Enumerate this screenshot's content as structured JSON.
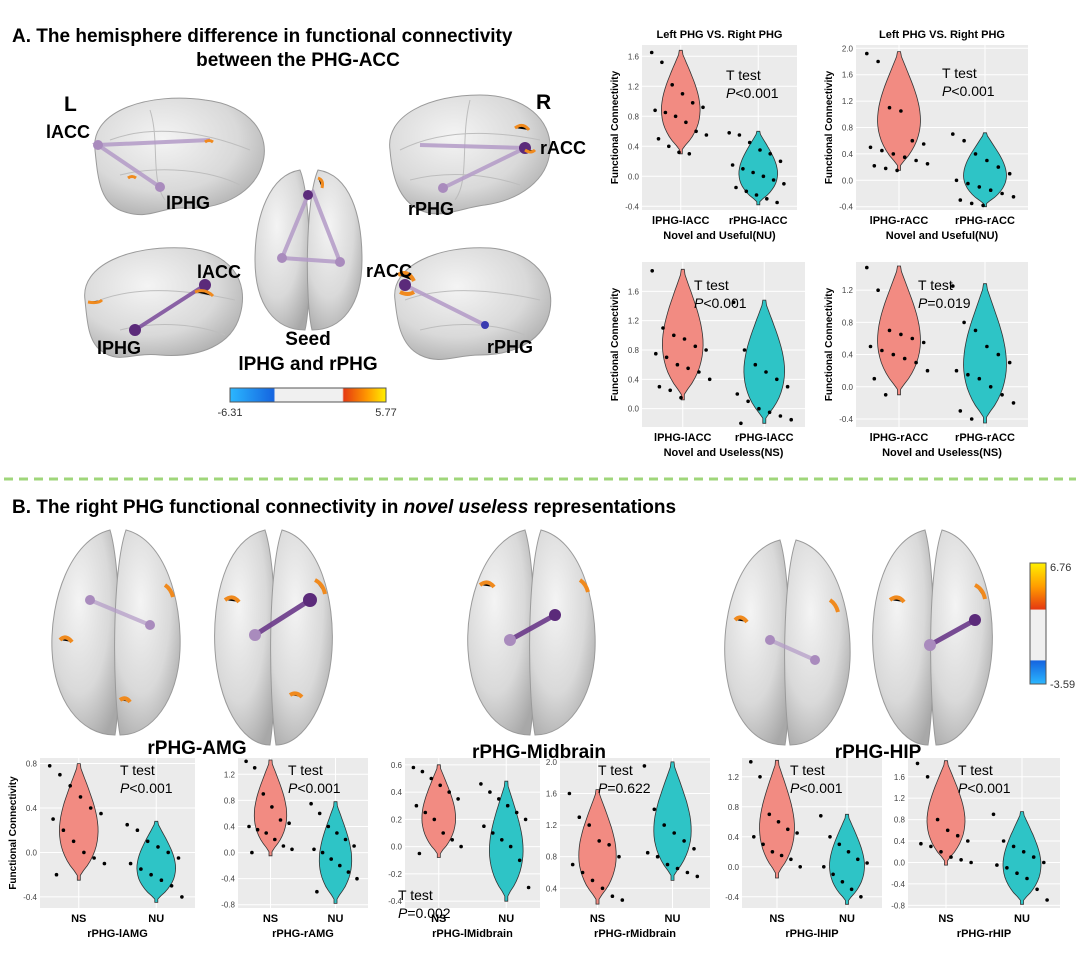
{
  "panel_a": {
    "title_line1": "A. The hemisphere difference in functional connectivity",
    "title_line2": "between the PHG-ACC",
    "hemi_left": "L",
    "hemi_right": "R",
    "labels": {
      "lacc_top": "lACC",
      "lphg_top": "lPHG",
      "racc_top": "rACC",
      "rphg_top": "rPHG",
      "lacc_bot": "lACC",
      "lphg_bot": "lPHG",
      "racc_bot": "rACC",
      "rphg_bot": "rPHG"
    },
    "seed_line1": "Seed",
    "seed_line2": "lPHG and rPHG",
    "colorbar": {
      "min": "-6.31",
      "max": "5.77"
    }
  },
  "panel_b": {
    "title_prefix": "B. The right PHG functional connectivity in ",
    "title_italic": "novel useless",
    "title_suffix": " representations",
    "brain_labels": [
      "rPHG-AMG",
      "rPHG-Midbrain",
      "rPHG-HIP"
    ],
    "colorbar": {
      "max": "6.76",
      "min": "-3.59"
    }
  },
  "colors": {
    "ns_red": "#f28b82",
    "nu_teal": "#2ec4c6",
    "divider": "#9fd67a",
    "panel_bg": "#ebebeb"
  },
  "chart_data": [
    {
      "type": "violin",
      "panel": "A-top-left",
      "title": "Left PHG VS. Right PHG",
      "ylabel": "Functional Connectivity",
      "categories": [
        "lPHG-lACC",
        "rPHG-lACC"
      ],
      "xlabel": "Novel and Useful(NU)",
      "yticks": [
        "1.6",
        "1.2",
        "0.8",
        "0.4",
        "0.0",
        "-0.4"
      ],
      "ylim": [
        -0.45,
        1.75
      ],
      "annotation": {
        "line1": "T test",
        "p_label": "P",
        "p_value": "<0.001"
      },
      "series": [
        {
          "values": [
            0.3,
            1.68
          ],
          "points": [
            1.65,
            1.52,
            1.22,
            1.1,
            0.98,
            0.92,
            0.88,
            0.85,
            0.8,
            0.72,
            0.6,
            0.55,
            0.5,
            0.4,
            0.32,
            0.3
          ]
        },
        {
          "values": [
            -0.38,
            0.6
          ],
          "points": [
            0.58,
            0.55,
            0.45,
            0.35,
            0.3,
            0.2,
            0.15,
            0.1,
            0.05,
            0.0,
            -0.05,
            -0.1,
            -0.15,
            -0.2,
            -0.25,
            -0.3,
            -0.35
          ]
        }
      ]
    },
    {
      "type": "violin",
      "panel": "A-top-right",
      "title": "Left PHG VS. Right PHG",
      "ylabel": "Functional Connectivity",
      "categories": [
        "lPHG-rACC",
        "rPHG-rACC"
      ],
      "xlabel": "Novel and Useful(NU)",
      "yticks": [
        "2.0",
        "1.6",
        "1.2",
        "0.8",
        "0.4",
        "0.0",
        "-0.4"
      ],
      "ylim": [
        -0.45,
        2.05
      ],
      "annotation": {
        "line1": "T test",
        "p_label": "P",
        "p_value": "<0.001"
      },
      "series": [
        {
          "values": [
            0.15,
            1.95
          ],
          "points": [
            1.92,
            1.8,
            1.1,
            1.05,
            0.6,
            0.55,
            0.5,
            0.45,
            0.4,
            0.35,
            0.3,
            0.25,
            0.22,
            0.18,
            0.15
          ]
        },
        {
          "values": [
            -0.4,
            0.72
          ],
          "points": [
            0.7,
            0.6,
            0.4,
            0.3,
            0.2,
            0.1,
            0.0,
            -0.05,
            -0.1,
            -0.15,
            -0.2,
            -0.25,
            -0.3,
            -0.35,
            -0.38
          ]
        }
      ]
    },
    {
      "type": "violin",
      "panel": "A-bottom-left",
      "ylabel": "Functional Connectivity",
      "categories": [
        "lPHG-lACC",
        "rPHG-lACC"
      ],
      "xlabel": "Novel and Useless(NS)",
      "yticks": [
        "1.6",
        "1.2",
        "0.8",
        "0.4",
        "0.0"
      ],
      "ylim": [
        -0.25,
        2.0
      ],
      "annotation": {
        "line1": "T test",
        "p_label": "P",
        "p_value": "<0.001"
      },
      "series": [
        {
          "values": [
            0.12,
            1.9
          ],
          "points": [
            1.88,
            1.1,
            1.0,
            0.95,
            0.85,
            0.8,
            0.75,
            0.7,
            0.6,
            0.55,
            0.5,
            0.4,
            0.3,
            0.25,
            0.15
          ]
        },
        {
          "values": [
            -0.2,
            1.48
          ],
          "points": [
            1.45,
            0.8,
            0.6,
            0.5,
            0.4,
            0.3,
            0.2,
            0.1,
            0.0,
            -0.05,
            -0.1,
            -0.15,
            -0.2
          ]
        }
      ]
    },
    {
      "type": "violin",
      "panel": "A-bottom-right",
      "ylabel": "Functional Connectivity",
      "categories": [
        "lPHG-rACC",
        "rPHG-rACC"
      ],
      "xlabel": "Novel and Useless(NS)",
      "yticks": [
        "1.2",
        "0.8",
        "0.4",
        "0.0",
        "-0.4"
      ],
      "ylim": [
        -0.5,
        1.55
      ],
      "annotation": {
        "line1": "T test",
        "p_label": "P",
        "p_value": "=0.019"
      },
      "series": [
        {
          "values": [
            -0.1,
            1.5
          ],
          "points": [
            1.48,
            1.2,
            0.7,
            0.65,
            0.6,
            0.55,
            0.5,
            0.45,
            0.4,
            0.35,
            0.3,
            0.2,
            0.1,
            -0.1
          ]
        },
        {
          "values": [
            -0.45,
            1.28
          ],
          "points": [
            1.25,
            0.8,
            0.7,
            0.5,
            0.4,
            0.3,
            0.2,
            0.15,
            0.1,
            0.0,
            -0.1,
            -0.2,
            -0.3,
            -0.4
          ]
        }
      ]
    },
    {
      "type": "violin",
      "panel": "B-1",
      "ylabel": "Functional Connectivity",
      "categories": [
        "NS",
        "NU"
      ],
      "xlabel": "rPHG-lAMG",
      "yticks": [
        "0.8",
        "0.4",
        "0.0",
        "-0.4"
      ],
      "ylim": [
        -0.5,
        0.85
      ],
      "annotation": {
        "line1": "T test",
        "p_label": "P",
        "p_value": "<0.001"
      },
      "series": [
        {
          "values": [
            -0.25,
            0.8
          ],
          "points": [
            0.78,
            0.7,
            0.6,
            0.5,
            0.4,
            0.35,
            0.3,
            0.2,
            0.1,
            0.0,
            -0.05,
            -0.1,
            -0.2
          ]
        },
        {
          "values": [
            -0.45,
            0.28
          ],
          "points": [
            0.25,
            0.2,
            0.1,
            0.05,
            0.0,
            -0.05,
            -0.1,
            -0.15,
            -0.2,
            -0.25,
            -0.3,
            -0.4
          ]
        }
      ]
    },
    {
      "type": "violin",
      "panel": "B-2",
      "categories": [
        "NS",
        "NU"
      ],
      "xlabel": "rPHG-rAMG",
      "yticks": [
        "1.2",
        "0.8",
        "0.4",
        "0.0",
        "-0.4",
        "-0.8"
      ],
      "ylim": [
        -0.85,
        1.45
      ],
      "annotation": {
        "line1": "T test",
        "p_label": "P",
        "p_value": "<0.001"
      },
      "series": [
        {
          "values": [
            -0.05,
            1.42
          ],
          "points": [
            1.4,
            1.3,
            0.9,
            0.7,
            0.5,
            0.45,
            0.4,
            0.35,
            0.3,
            0.2,
            0.1,
            0.05,
            0.0
          ]
        },
        {
          "values": [
            -0.78,
            0.78
          ],
          "points": [
            0.75,
            0.6,
            0.4,
            0.3,
            0.2,
            0.1,
            0.05,
            0.0,
            -0.1,
            -0.2,
            -0.3,
            -0.4,
            -0.6
          ]
        }
      ]
    },
    {
      "type": "violin",
      "panel": "B-3",
      "categories": [
        "NS",
        "NU"
      ],
      "xlabel": "rPHG-lMidbrain",
      "yticks": [
        "0.6",
        "0.4",
        "0.2",
        "0.0",
        "-0.2",
        "-0.4"
      ],
      "ylim": [
        -0.45,
        0.65
      ],
      "annotation": {
        "line1": "T test",
        "p_label": "P",
        "p_value": "=0.002"
      },
      "series": [
        {
          "values": [
            -0.08,
            0.6
          ],
          "points": [
            0.58,
            0.55,
            0.5,
            0.45,
            0.4,
            0.35,
            0.3,
            0.25,
            0.2,
            0.1,
            0.05,
            0.0,
            -0.05
          ]
        },
        {
          "values": [
            -0.4,
            0.48
          ],
          "points": [
            0.46,
            0.4,
            0.35,
            0.3,
            0.25,
            0.2,
            0.15,
            0.1,
            0.05,
            0.0,
            -0.1,
            -0.3
          ]
        }
      ]
    },
    {
      "type": "violin",
      "panel": "B-4",
      "categories": [
        "NS",
        "NU"
      ],
      "xlabel": "rPHG-rMidbrain",
      "yticks": [
        "2.0",
        "1.6",
        "1.2",
        "0.8",
        "0.4"
      ],
      "ylim": [
        0.15,
        2.05
      ],
      "annotation": {
        "line1": "T test",
        "p_label": "P",
        "p_value": "=0.622"
      },
      "series": [
        {
          "values": [
            0.2,
            1.65
          ],
          "points": [
            1.6,
            1.3,
            1.2,
            1.0,
            0.95,
            0.8,
            0.7,
            0.6,
            0.5,
            0.4,
            0.3,
            0.25
          ]
        },
        {
          "values": [
            0.5,
            2.0
          ],
          "points": [
            1.95,
            1.4,
            1.2,
            1.1,
            1.0,
            0.9,
            0.85,
            0.8,
            0.7,
            0.65,
            0.6,
            0.55
          ]
        }
      ]
    },
    {
      "type": "violin",
      "panel": "B-5",
      "categories": [
        "NS",
        "NU"
      ],
      "xlabel": "rPHG-lHIP",
      "yticks": [
        "1.2",
        "0.8",
        "0.4",
        "0.0",
        "-0.4"
      ],
      "ylim": [
        -0.55,
        1.45
      ],
      "annotation": {
        "line1": "T test",
        "p_label": "P",
        "p_value": "<0.001"
      },
      "series": [
        {
          "values": [
            -0.15,
            1.42
          ],
          "points": [
            1.4,
            1.2,
            0.7,
            0.6,
            0.5,
            0.45,
            0.4,
            0.3,
            0.2,
            0.15,
            0.1,
            0.0
          ]
        },
        {
          "values": [
            -0.5,
            0.7
          ],
          "points": [
            0.68,
            0.4,
            0.3,
            0.2,
            0.1,
            0.05,
            0.0,
            -0.1,
            -0.2,
            -0.3,
            -0.4
          ]
        }
      ]
    },
    {
      "type": "violin",
      "panel": "B-6",
      "categories": [
        "NS",
        "NU"
      ],
      "xlabel": "rPHG-rHIP",
      "yticks": [
        "1.6",
        "1.2",
        "0.8",
        "0.4",
        "0.0",
        "-0.4",
        "-0.8"
      ],
      "ylim": [
        -0.85,
        1.95
      ],
      "annotation": {
        "line1": "T test",
        "p_label": "P",
        "p_value": "<0.001"
      },
      "series": [
        {
          "values": [
            -0.05,
            1.9
          ],
          "points": [
            1.85,
            1.6,
            0.8,
            0.6,
            0.5,
            0.4,
            0.35,
            0.3,
            0.2,
            0.1,
            0.05,
            0.0
          ]
        },
        {
          "values": [
            -0.78,
            0.95
          ],
          "points": [
            0.9,
            0.4,
            0.3,
            0.2,
            0.1,
            0.0,
            -0.05,
            -0.1,
            -0.2,
            -0.3,
            -0.5,
            -0.7
          ]
        }
      ]
    }
  ]
}
